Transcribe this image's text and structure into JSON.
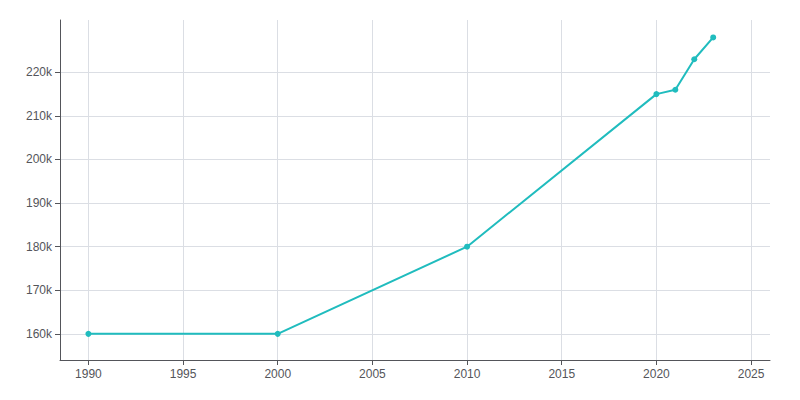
{
  "chart_data": {
    "type": "line",
    "x": [
      1990,
      2000,
      2010,
      2020,
      2021,
      2022,
      2023
    ],
    "values": [
      160000,
      160000,
      180000,
      215000,
      216000,
      223000,
      228000
    ],
    "color": "#20BCBE",
    "marker": "circle",
    "xlim": [
      1988.5,
      2026
    ],
    "ylim": [
      154000,
      232000
    ],
    "xticks": [
      1990,
      1995,
      2000,
      2005,
      2010,
      2015,
      2020,
      2025
    ],
    "yticks": [
      {
        "value": 160000,
        "label": "160k"
      },
      {
        "value": 170000,
        "label": "170k"
      },
      {
        "value": 180000,
        "label": "180k"
      },
      {
        "value": 190000,
        "label": "190k"
      },
      {
        "value": 200000,
        "label": "200k"
      },
      {
        "value": 210000,
        "label": "210k"
      },
      {
        "value": 220000,
        "label": "220k"
      }
    ],
    "grid": true
  }
}
